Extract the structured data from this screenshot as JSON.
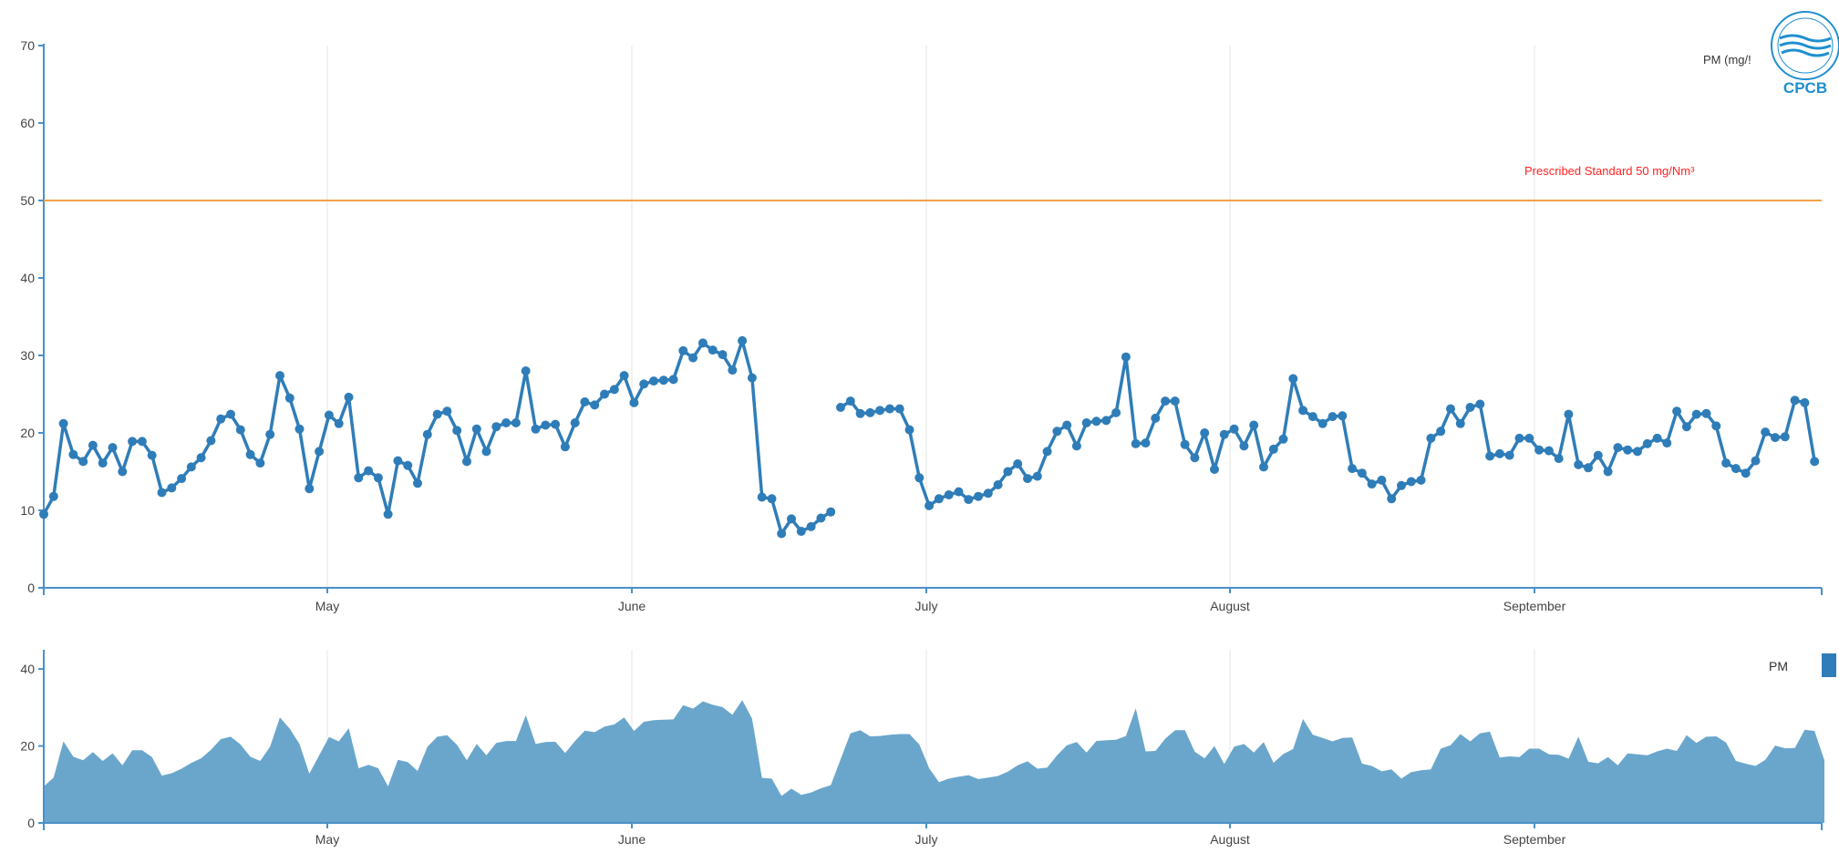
{
  "chart_data": [
    {
      "type": "line",
      "ylabel": "PM (mg/!",
      "ylim": [
        0,
        70
      ],
      "y_ticks": [
        "0",
        "10",
        "20",
        "30",
        "40",
        "50",
        "60",
        "70"
      ],
      "x_ticks": [
        "May",
        "June",
        "July",
        "August",
        "September"
      ],
      "grid": true,
      "reference_line": {
        "value": 50,
        "label": "Prescribed Standard 50 mg/Nm³",
        "color": "#f5a04a"
      },
      "series": [
        {
          "color": "#2f7db8",
          "segments": [
            [
              9.5,
              11.8,
              21.2,
              17.2,
              16.3,
              18.4,
              16.1,
              18.1,
              15.0,
              18.9,
              18.9,
              17.1,
              12.3,
              12.9,
              14.1,
              15.6,
              16.8,
              19.0,
              21.8,
              22.4,
              20.4,
              17.2,
              16.1,
              19.8,
              27.4,
              24.5,
              20.5,
              12.8,
              17.6,
              22.3,
              21.2,
              24.6,
              14.2,
              15.1,
              14.2,
              9.5,
              16.4,
              15.8,
              13.5,
              19.8,
              22.4,
              22.8,
              20.3,
              16.3,
              20.5,
              17.6,
              20.8,
              21.3,
              21.3,
              28.0,
              20.5,
              21.0,
              21.1,
              18.2,
              21.3,
              24.0,
              23.6,
              25.0,
              25.6,
              27.4,
              23.9,
              26.3,
              26.7,
              26.8,
              26.9,
              30.6,
              29.7,
              31.6,
              30.7,
              30.1,
              28.1,
              31.9,
              27.1,
              11.7,
              11.5,
              7.0,
              8.9,
              7.3,
              7.9,
              9.0,
              9.8
            ],
            [
              23.3,
              24.1,
              22.5,
              22.6,
              22.9,
              23.1,
              23.1,
              20.4,
              14.2,
              10.6,
              11.5,
              12.0,
              12.4,
              11.4,
              11.8,
              12.2,
              13.3,
              15.0,
              16.0,
              14.1,
              14.4,
              17.6,
              20.2,
              21.0,
              18.3,
              21.3,
              21.5,
              21.6,
              22.6,
              29.8,
              18.6,
              18.7,
              21.9,
              24.1,
              24.1,
              18.5,
              16.8,
              20.0,
              15.3,
              19.8,
              20.5,
              18.3,
              21.0,
              15.6,
              17.9,
              19.2,
              27.0,
              22.9,
              22.1,
              21.2,
              22.1,
              22.2,
              15.4,
              14.8,
              13.4,
              13.9,
              11.5,
              13.2,
              13.7,
              13.9,
              19.3,
              20.2,
              23.1,
              21.2,
              23.3,
              23.7,
              17.0,
              17.3,
              17.1,
              19.3,
              19.3,
              17.8,
              17.7,
              16.7,
              22.4,
              15.9,
              15.5,
              17.1,
              15.0,
              18.1,
              17.8,
              17.6,
              18.6,
              19.3,
              18.7,
              22.8,
              20.8,
              22.4,
              22.5,
              20.9,
              16.1,
              15.4,
              14.8,
              16.4,
              20.1,
              19.4,
              19.5,
              24.2,
              23.9,
              16.3
            ]
          ]
        }
      ]
    },
    {
      "type": "area",
      "ylim": [
        0,
        45
      ],
      "y_ticks": [
        "0",
        "20",
        "40"
      ],
      "x_ticks": [
        "May",
        "June",
        "July",
        "August",
        "September"
      ],
      "grid": true,
      "legend": [
        {
          "label": "PM",
          "color": "#2f7db8"
        }
      ],
      "series": [
        {
          "color": "#6aa6cc",
          "values": [
            9.5,
            11.8,
            21.2,
            17.2,
            16.3,
            18.4,
            16.1,
            18.1,
            15.0,
            18.9,
            18.9,
            17.1,
            12.3,
            12.9,
            14.1,
            15.6,
            16.8,
            19.0,
            21.8,
            22.4,
            20.4,
            17.2,
            16.1,
            19.8,
            27.4,
            24.5,
            20.5,
            12.8,
            17.6,
            22.3,
            21.2,
            24.6,
            14.2,
            15.1,
            14.2,
            9.5,
            16.4,
            15.8,
            13.5,
            19.8,
            22.4,
            22.8,
            20.3,
            16.3,
            20.5,
            17.6,
            20.8,
            21.3,
            21.3,
            28.0,
            20.5,
            21.0,
            21.1,
            18.2,
            21.3,
            24.0,
            23.6,
            25.0,
            25.6,
            27.4,
            23.9,
            26.3,
            26.7,
            26.8,
            26.9,
            30.6,
            29.7,
            31.6,
            30.7,
            30.1,
            28.1,
            31.9,
            27.1,
            11.7,
            11.5,
            7.0,
            8.9,
            7.3,
            7.9,
            9.0,
            9.8,
            23.3,
            24.1,
            22.5,
            22.6,
            22.9,
            23.1,
            23.1,
            20.4,
            14.2,
            10.6,
            11.5,
            12.0,
            12.4,
            11.4,
            11.8,
            12.2,
            13.3,
            15.0,
            16.0,
            14.1,
            14.4,
            17.6,
            20.2,
            21.0,
            18.3,
            21.3,
            21.5,
            21.6,
            22.6,
            29.8,
            18.6,
            18.7,
            21.9,
            24.1,
            24.1,
            18.5,
            16.8,
            20.0,
            15.3,
            19.8,
            20.5,
            18.3,
            21.0,
            15.6,
            17.9,
            19.2,
            27.0,
            22.9,
            22.1,
            21.2,
            22.1,
            22.2,
            15.4,
            14.8,
            13.4,
            13.9,
            11.5,
            13.2,
            13.7,
            13.9,
            19.3,
            20.2,
            23.1,
            21.2,
            23.3,
            23.7,
            17.0,
            17.3,
            17.1,
            19.3,
            19.3,
            17.8,
            17.7,
            16.7,
            22.4,
            15.9,
            15.5,
            17.1,
            15.0,
            18.1,
            17.8,
            17.6,
            18.6,
            19.3,
            18.7,
            22.8,
            20.8,
            22.4,
            22.5,
            20.9,
            16.1,
            15.4,
            14.8,
            16.4,
            20.1,
            19.4,
            19.5,
            24.2,
            23.9,
            16.3
          ]
        }
      ]
    }
  ],
  "logo": {
    "text": "CPCB",
    "color": "#1f8fd0"
  }
}
